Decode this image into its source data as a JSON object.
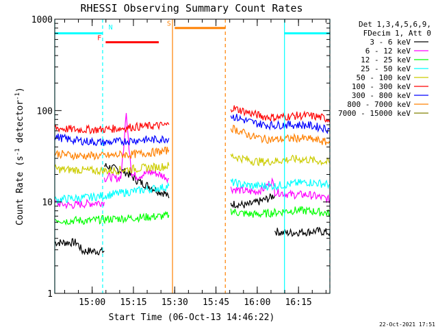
{
  "chart_data": {
    "type": "line",
    "title": "RHESSI Observing Summary Count Rates",
    "xlabel": "Start Time (06-Oct-13 14:46:22)",
    "ylabel": "Count Rate (s⁻¹ detector⁻¹)",
    "ylabel_parts": {
      "main": "Count Rate (s",
      "sup1": "-1",
      "mid": " detector",
      "sup2": "-1",
      "end": ")"
    },
    "yscale": "log",
    "ylim": [
      1,
      1000
    ],
    "y_ticks": [
      {
        "value": 1,
        "label": "1"
      },
      {
        "value": 10,
        "label": "10"
      },
      {
        "value": 100,
        "label": "100"
      },
      {
        "value": 1000,
        "label": "1000"
      }
    ],
    "xlim_minutes": [
      0,
      100
    ],
    "x_ticks": [
      {
        "minute": 13.6,
        "label": "15:00"
      },
      {
        "minute": 28.6,
        "label": "15:15"
      },
      {
        "minute": 43.6,
        "label": "15:30"
      },
      {
        "minute": 58.6,
        "label": "15:45"
      },
      {
        "minute": 73.6,
        "label": "16:00"
      },
      {
        "minute": 88.6,
        "label": "16:15"
      }
    ],
    "legend_header": [
      "Det 1,3,4,5,6,9,",
      "FDecim 1, Att 0"
    ],
    "legend_position": "top-right",
    "series": [
      {
        "name": "3 - 6 keV",
        "color": "#000000",
        "segments": [
          {
            "x": [
              0,
              2,
              4,
              6,
              8,
              10,
              12,
              14,
              16,
              18
            ],
            "y": [
              3.6,
              3.6,
              3.6,
              3.6,
              3.6,
              2.9,
              2.9,
              2.9,
              2.9,
              2.9
            ]
          },
          {
            "x": [
              18,
              20,
              22,
              24,
              26,
              28,
              30,
              32,
              34,
              36,
              38,
              40,
              41.5
            ],
            "y": [
              25,
              24,
              23,
              22,
              21,
              19,
              17,
              16,
              15,
              14,
              13,
              12.5,
              11
            ]
          },
          {
            "x": [
              64,
              66,
              68,
              70,
              72,
              74,
              76,
              78,
              80
            ],
            "y": [
              9.5,
              9.5,
              9.3,
              9.2,
              9.6,
              10,
              10.5,
              11,
              12
            ]
          },
          {
            "x": [
              80,
              83,
              86,
              89,
              92,
              95,
              98,
              100
            ],
            "y": [
              4.8,
              4.6,
              4.6,
              4.7,
              4.7,
              4.8,
              4.7,
              4.6
            ]
          }
        ]
      },
      {
        "name": "6 - 12 keV",
        "color": "#ff00ff",
        "segments": [
          {
            "x": [
              0,
              3,
              6,
              9,
              12,
              15,
              18
            ],
            "y": [
              9.8,
              9.4,
              9.2,
              9.4,
              9.6,
              9.8,
              10
            ]
          },
          {
            "x": [
              18,
              20,
              22,
              24,
              25,
              26,
              27,
              28,
              30,
              32,
              34,
              36,
              38,
              40,
              41.5
            ],
            "y": [
              18,
              19,
              18,
              18.5,
              35,
              90,
              40,
              20,
              19,
              20,
              21,
              21,
              20,
              19,
              18
            ]
          },
          {
            "x": [
              64,
              67,
              70,
              73,
              76,
              79,
              80,
              83,
              86,
              89,
              92,
              95,
              98,
              100
            ],
            "y": [
              14,
              13.5,
              13,
              13,
              14,
              17,
              13,
              12.5,
              12,
              12,
              12,
              11.5,
              11,
              10.5
            ]
          }
        ]
      },
      {
        "name": "12 - 25 keV",
        "color": "#00ff00",
        "segments": [
          {
            "x": [
              0,
              4,
              8,
              12,
              16,
              20,
              24,
              28,
              32,
              36,
              40,
              41.5
            ],
            "y": [
              6.5,
              6.2,
              6.3,
              6.2,
              6.4,
              6.5,
              6.6,
              6.7,
              6.8,
              6.9,
              7.0,
              7.2
            ]
          },
          {
            "x": [
              64,
              67,
              70,
              73,
              76,
              79,
              82,
              85,
              88,
              91,
              94,
              97,
              100
            ],
            "y": [
              8.0,
              7.6,
              7.4,
              7.3,
              7.4,
              7.6,
              7.8,
              8.0,
              8.1,
              8.0,
              7.9,
              7.7,
              7.5
            ]
          }
        ]
      },
      {
        "name": "25 - 50 keV",
        "color": "#00ffff",
        "segments": [
          {
            "x": [
              0,
              4,
              8,
              12,
              16,
              20,
              24,
              28,
              32,
              36,
              40,
              41.5
            ],
            "y": [
              10.5,
              10.8,
              11,
              11.2,
              11.5,
              12,
              12.5,
              13,
              13.5,
              14,
              14.5,
              15
            ]
          },
          {
            "x": [
              64,
              68,
              72,
              76,
              80,
              84,
              88,
              92,
              96,
              100
            ],
            "y": [
              16.5,
              15.5,
              15,
              15,
              15,
              15.5,
              16,
              16.5,
              16,
              15.5
            ]
          }
        ]
      },
      {
        "name": "50 - 100 keV",
        "color": "#cccc00",
        "segments": [
          {
            "x": [
              0,
              4,
              8,
              12,
              16,
              20,
              24,
              28,
              32,
              36,
              40,
              41.5
            ],
            "y": [
              23,
              22.5,
              22.5,
              22,
              22,
              22,
              22.5,
              23,
              23.5,
              24,
              24.5,
              25
            ]
          },
          {
            "x": [
              64,
              68,
              72,
              76,
              80,
              84,
              88,
              92,
              96,
              100
            ],
            "y": [
              32,
              30,
              28,
              27.5,
              28,
              29,
              29.5,
              29,
              28,
              27
            ]
          }
        ]
      },
      {
        "name": "100 - 300 keV",
        "color": "#ff0000",
        "segments": [
          {
            "x": [
              0,
              4,
              8,
              12,
              16,
              20,
              24,
              28,
              32,
              36,
              40,
              41.5
            ],
            "y": [
              65,
              63,
              62,
              62,
              62,
              63,
              64,
              66,
              67,
              68,
              69,
              70
            ]
          },
          {
            "x": [
              64,
              68,
              72,
              76,
              80,
              84,
              88,
              92,
              96,
              100
            ],
            "y": [
              108,
              100,
              92,
              86,
              84,
              86,
              88,
              88,
              85,
              80
            ]
          }
        ]
      },
      {
        "name": "300 - 800 keV",
        "color": "#0000ff",
        "segments": [
          {
            "x": [
              0,
              4,
              8,
              12,
              16,
              20,
              24,
              28,
              32,
              36,
              40,
              41.5
            ],
            "y": [
              52,
              49,
              47,
              46,
              45,
              45,
              46,
              47,
              48,
              48,
              49,
              50
            ]
          },
          {
            "x": [
              64,
              68,
              72,
              76,
              80,
              84,
              88,
              92,
              96,
              100
            ],
            "y": [
              88,
              80,
              74,
              70,
              69,
              70,
              70,
              69,
              66,
              62
            ]
          }
        ]
      },
      {
        "name": "800 - 7000 keV",
        "color": "#ff8000",
        "segments": [
          {
            "x": [
              0,
              4,
              8,
              12,
              16,
              20,
              24,
              28,
              32,
              36,
              40,
              41.5
            ],
            "y": [
              34,
              33,
              32,
              32,
              32,
              32,
              33,
              33,
              34,
              35,
              36,
              37
            ]
          },
          {
            "x": [
              64,
              68,
              72,
              76,
              80,
              84,
              88,
              92,
              96,
              100
            ],
            "y": [
              65,
              58,
              52,
              49,
              48,
              49,
              50,
              49,
              47,
              44
            ]
          }
        ]
      },
      {
        "name": "7000 - 15000 keV",
        "color": "#808000",
        "segments": []
      }
    ],
    "vertical_lines": [
      {
        "minute": 0,
        "color": "#00ffff",
        "style": "solid"
      },
      {
        "minute": 17.4,
        "color": "#00ffff",
        "style": "dashed"
      },
      {
        "minute": 42.8,
        "color": "#ff8000",
        "style": "solid"
      },
      {
        "minute": 62.0,
        "color": "#ff8000",
        "style": "dashed"
      },
      {
        "minute": 83.5,
        "color": "#00ffff",
        "style": "solid"
      },
      {
        "minute": 100,
        "color": "#00ffff",
        "style": "dashed"
      }
    ],
    "annotation_bars": [
      {
        "label": "N",
        "start": 0,
        "end": 17.4,
        "color": "#00ffff",
        "y": 700,
        "label_minute": 20.3,
        "label_y": 770
      },
      {
        "label": "",
        "start": 83.5,
        "end": 100,
        "color": "#00ffff",
        "y": 700
      },
      {
        "label": "F",
        "start": 18.5,
        "end": 37.8,
        "color": "#ff0000",
        "y": 560,
        "label_minute": 16.2,
        "label_y": 590
      },
      {
        "label": "S",
        "start": 43.6,
        "end": 62.0,
        "color": "#ff8000",
        "y": 800,
        "label_minute": 41.5,
        "label_y": 850
      }
    ],
    "timestamp": "22-Oct-2021 17:51"
  }
}
